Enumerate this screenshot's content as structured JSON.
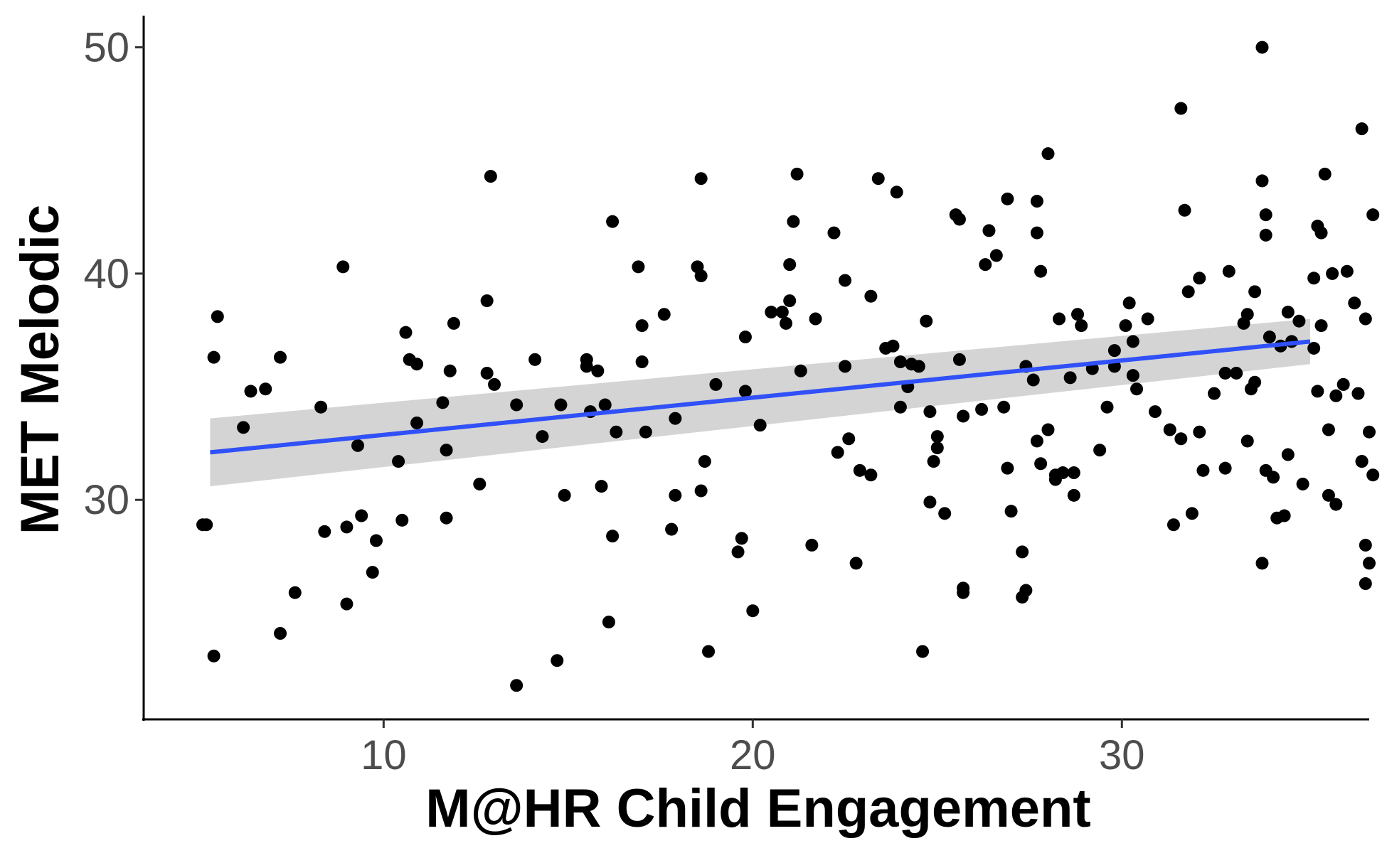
{
  "chart_data": {
    "type": "scatter",
    "title": "",
    "xlabel": "M@HR Child Engagement",
    "ylabel": "MET Melodic",
    "xlim": [
      3.5,
      36.7
    ],
    "ylim": [
      20.3,
      51.4
    ],
    "x_ticks": [
      10,
      20,
      30
    ],
    "y_ticks": [
      30,
      40,
      50
    ],
    "grid": false,
    "legend": "none",
    "colors": {
      "points": "#000000",
      "fit_line": "#3050f8",
      "confidence_band": "#cccccc",
      "axis": "#000000",
      "tick_label": "#4d4d4d"
    },
    "fit_line": {
      "x": [
        5.3,
        35.1
      ],
      "y": [
        32.1,
        37.0
      ]
    },
    "confidence_band": {
      "x": [
        5.3,
        35.1
      ],
      "lower": [
        30.6,
        36.0
      ],
      "upper": [
        33.6,
        38.0
      ]
    },
    "points": [
      [
        5.1,
        28.9
      ],
      [
        5.2,
        28.9
      ],
      [
        5.4,
        23.1
      ],
      [
        5.4,
        36.3
      ],
      [
        5.5,
        38.1
      ],
      [
        6.2,
        33.2
      ],
      [
        6.4,
        34.8
      ],
      [
        6.8,
        34.9
      ],
      [
        7.2,
        36.3
      ],
      [
        7.2,
        24.1
      ],
      [
        7.6,
        25.9
      ],
      [
        8.3,
        34.1
      ],
      [
        8.4,
        28.6
      ],
      [
        8.9,
        40.3
      ],
      [
        9.0,
        28.8
      ],
      [
        9.0,
        25.4
      ],
      [
        9.3,
        32.4
      ],
      [
        9.4,
        29.3
      ],
      [
        9.7,
        26.8
      ],
      [
        9.8,
        28.2
      ],
      [
        10.4,
        31.7
      ],
      [
        10.5,
        29.1
      ],
      [
        10.6,
        37.4
      ],
      [
        10.7,
        36.2
      ],
      [
        10.9,
        33.4
      ],
      [
        10.9,
        36.0
      ],
      [
        11.6,
        34.3
      ],
      [
        11.7,
        32.2
      ],
      [
        11.7,
        29.2
      ],
      [
        11.8,
        35.7
      ],
      [
        11.9,
        37.8
      ],
      [
        12.6,
        30.7
      ],
      [
        12.8,
        35.6
      ],
      [
        12.8,
        38.8
      ],
      [
        12.9,
        44.3
      ],
      [
        13.0,
        35.1
      ],
      [
        13.6,
        21.8
      ],
      [
        13.6,
        34.2
      ],
      [
        14.1,
        36.2
      ],
      [
        14.3,
        32.8
      ],
      [
        14.7,
        22.9
      ],
      [
        14.8,
        34.2
      ],
      [
        14.9,
        30.2
      ],
      [
        15.5,
        35.9
      ],
      [
        15.5,
        36.2
      ],
      [
        15.6,
        33.9
      ],
      [
        15.8,
        35.7
      ],
      [
        15.9,
        30.6
      ],
      [
        16.0,
        34.2
      ],
      [
        16.1,
        24.6
      ],
      [
        16.2,
        42.3
      ],
      [
        16.2,
        28.4
      ],
      [
        16.3,
        33.0
      ],
      [
        16.9,
        40.3
      ],
      [
        17.0,
        37.7
      ],
      [
        17.0,
        36.1
      ],
      [
        17.1,
        33.0
      ],
      [
        17.6,
        38.2
      ],
      [
        17.8,
        28.7
      ],
      [
        17.9,
        33.6
      ],
      [
        17.9,
        30.2
      ],
      [
        18.5,
        40.3
      ],
      [
        18.6,
        39.9
      ],
      [
        18.6,
        30.4
      ],
      [
        18.6,
        44.2
      ],
      [
        18.7,
        31.7
      ],
      [
        18.8,
        23.3
      ],
      [
        19.0,
        35.1
      ],
      [
        19.6,
        27.7
      ],
      [
        19.7,
        28.3
      ],
      [
        19.8,
        37.2
      ],
      [
        19.8,
        34.8
      ],
      [
        20.0,
        25.1
      ],
      [
        20.2,
        33.3
      ],
      [
        20.5,
        38.3
      ],
      [
        20.8,
        38.3
      ],
      [
        20.9,
        37.8
      ],
      [
        21.0,
        38.8
      ],
      [
        21.0,
        40.4
      ],
      [
        21.1,
        42.3
      ],
      [
        21.2,
        44.4
      ],
      [
        21.3,
        35.7
      ],
      [
        21.6,
        28.0
      ],
      [
        21.7,
        38.0
      ],
      [
        22.2,
        41.8
      ],
      [
        22.3,
        32.1
      ],
      [
        22.5,
        35.9
      ],
      [
        22.5,
        39.7
      ],
      [
        22.6,
        32.7
      ],
      [
        22.8,
        27.2
      ],
      [
        22.9,
        31.3
      ],
      [
        23.2,
        31.1
      ],
      [
        23.2,
        39.0
      ],
      [
        23.4,
        44.2
      ],
      [
        23.6,
        36.7
      ],
      [
        23.8,
        36.8
      ],
      [
        23.9,
        43.6
      ],
      [
        24.0,
        36.1
      ],
      [
        24.0,
        34.1
      ],
      [
        24.2,
        35.0
      ],
      [
        24.3,
        36.0
      ],
      [
        24.5,
        35.9
      ],
      [
        24.6,
        23.3
      ],
      [
        24.7,
        37.9
      ],
      [
        24.8,
        33.9
      ],
      [
        24.8,
        29.9
      ],
      [
        24.9,
        31.7
      ],
      [
        25.0,
        32.8
      ],
      [
        25.0,
        32.3
      ],
      [
        25.2,
        29.4
      ],
      [
        25.5,
        42.6
      ],
      [
        25.6,
        42.4
      ],
      [
        25.6,
        36.2
      ],
      [
        25.7,
        33.7
      ],
      [
        25.7,
        25.9
      ],
      [
        25.7,
        26.1
      ],
      [
        26.2,
        34.0
      ],
      [
        26.3,
        40.4
      ],
      [
        26.4,
        41.9
      ],
      [
        26.6,
        40.8
      ],
      [
        26.8,
        34.1
      ],
      [
        26.9,
        43.3
      ],
      [
        26.9,
        31.4
      ],
      [
        27.0,
        29.5
      ],
      [
        27.3,
        27.7
      ],
      [
        27.3,
        25.7
      ],
      [
        27.4,
        26.0
      ],
      [
        27.4,
        35.9
      ],
      [
        27.6,
        35.3
      ],
      [
        27.7,
        32.6
      ],
      [
        27.7,
        43.2
      ],
      [
        27.7,
        41.8
      ],
      [
        27.8,
        40.1
      ],
      [
        27.8,
        31.6
      ],
      [
        28.0,
        45.3
      ],
      [
        28.0,
        33.1
      ],
      [
        28.2,
        31.1
      ],
      [
        28.2,
        30.9
      ],
      [
        28.3,
        38.0
      ],
      [
        28.4,
        31.2
      ],
      [
        28.6,
        35.4
      ],
      [
        28.7,
        31.2
      ],
      [
        28.7,
        30.2
      ],
      [
        28.8,
        38.2
      ],
      [
        28.9,
        37.7
      ],
      [
        29.2,
        35.8
      ],
      [
        29.4,
        32.2
      ],
      [
        29.6,
        34.1
      ],
      [
        29.8,
        36.6
      ],
      [
        29.8,
        35.9
      ],
      [
        30.1,
        37.7
      ],
      [
        30.2,
        38.7
      ],
      [
        30.3,
        35.5
      ],
      [
        30.3,
        37.0
      ],
      [
        30.4,
        34.9
      ],
      [
        30.7,
        38.0
      ],
      [
        30.9,
        33.9
      ],
      [
        31.3,
        33.1
      ],
      [
        31.4,
        28.9
      ],
      [
        31.6,
        32.7
      ],
      [
        31.6,
        47.3
      ],
      [
        31.7,
        42.8
      ],
      [
        31.8,
        39.2
      ],
      [
        31.9,
        29.4
      ],
      [
        32.1,
        39.8
      ],
      [
        32.1,
        33.0
      ],
      [
        32.2,
        31.3
      ],
      [
        32.5,
        34.7
      ],
      [
        32.8,
        35.6
      ],
      [
        32.8,
        31.4
      ],
      [
        32.9,
        40.1
      ],
      [
        33.1,
        35.6
      ],
      [
        33.3,
        37.8
      ],
      [
        33.4,
        38.2
      ],
      [
        33.4,
        32.6
      ],
      [
        33.5,
        34.9
      ],
      [
        33.6,
        35.2
      ],
      [
        33.6,
        39.2
      ],
      [
        33.8,
        44.1
      ],
      [
        33.8,
        27.2
      ],
      [
        33.8,
        50.0
      ],
      [
        33.9,
        42.6
      ],
      [
        33.9,
        41.7
      ],
      [
        33.9,
        31.3
      ],
      [
        34.0,
        37.2
      ],
      [
        34.1,
        31.0
      ],
      [
        34.2,
        29.2
      ],
      [
        34.3,
        36.8
      ],
      [
        34.4,
        29.3
      ],
      [
        34.5,
        38.3
      ],
      [
        34.5,
        32.0
      ],
      [
        34.6,
        37.0
      ],
      [
        34.8,
        37.9
      ],
      [
        34.9,
        30.7
      ],
      [
        35.2,
        39.8
      ],
      [
        35.2,
        36.7
      ],
      [
        35.3,
        34.8
      ],
      [
        35.3,
        42.1
      ],
      [
        35.4,
        41.8
      ],
      [
        35.4,
        37.7
      ],
      [
        35.5,
        44.4
      ],
      [
        35.6,
        30.2
      ],
      [
        35.6,
        33.1
      ],
      [
        35.7,
        40.0
      ],
      [
        35.8,
        29.8
      ],
      [
        35.8,
        34.6
      ],
      [
        36.0,
        35.1
      ],
      [
        36.1,
        40.1
      ],
      [
        36.3,
        38.7
      ],
      [
        36.4,
        34.7
      ],
      [
        36.5,
        31.7
      ],
      [
        36.5,
        46.4
      ],
      [
        36.6,
        38.0
      ],
      [
        36.6,
        26.3
      ],
      [
        36.7,
        27.2
      ],
      [
        36.7,
        33.0
      ],
      [
        36.8,
        31.1
      ],
      [
        36.8,
        42.6
      ],
      [
        36.5,
        31.7
      ],
      [
        36.6,
        28.0
      ]
    ]
  }
}
